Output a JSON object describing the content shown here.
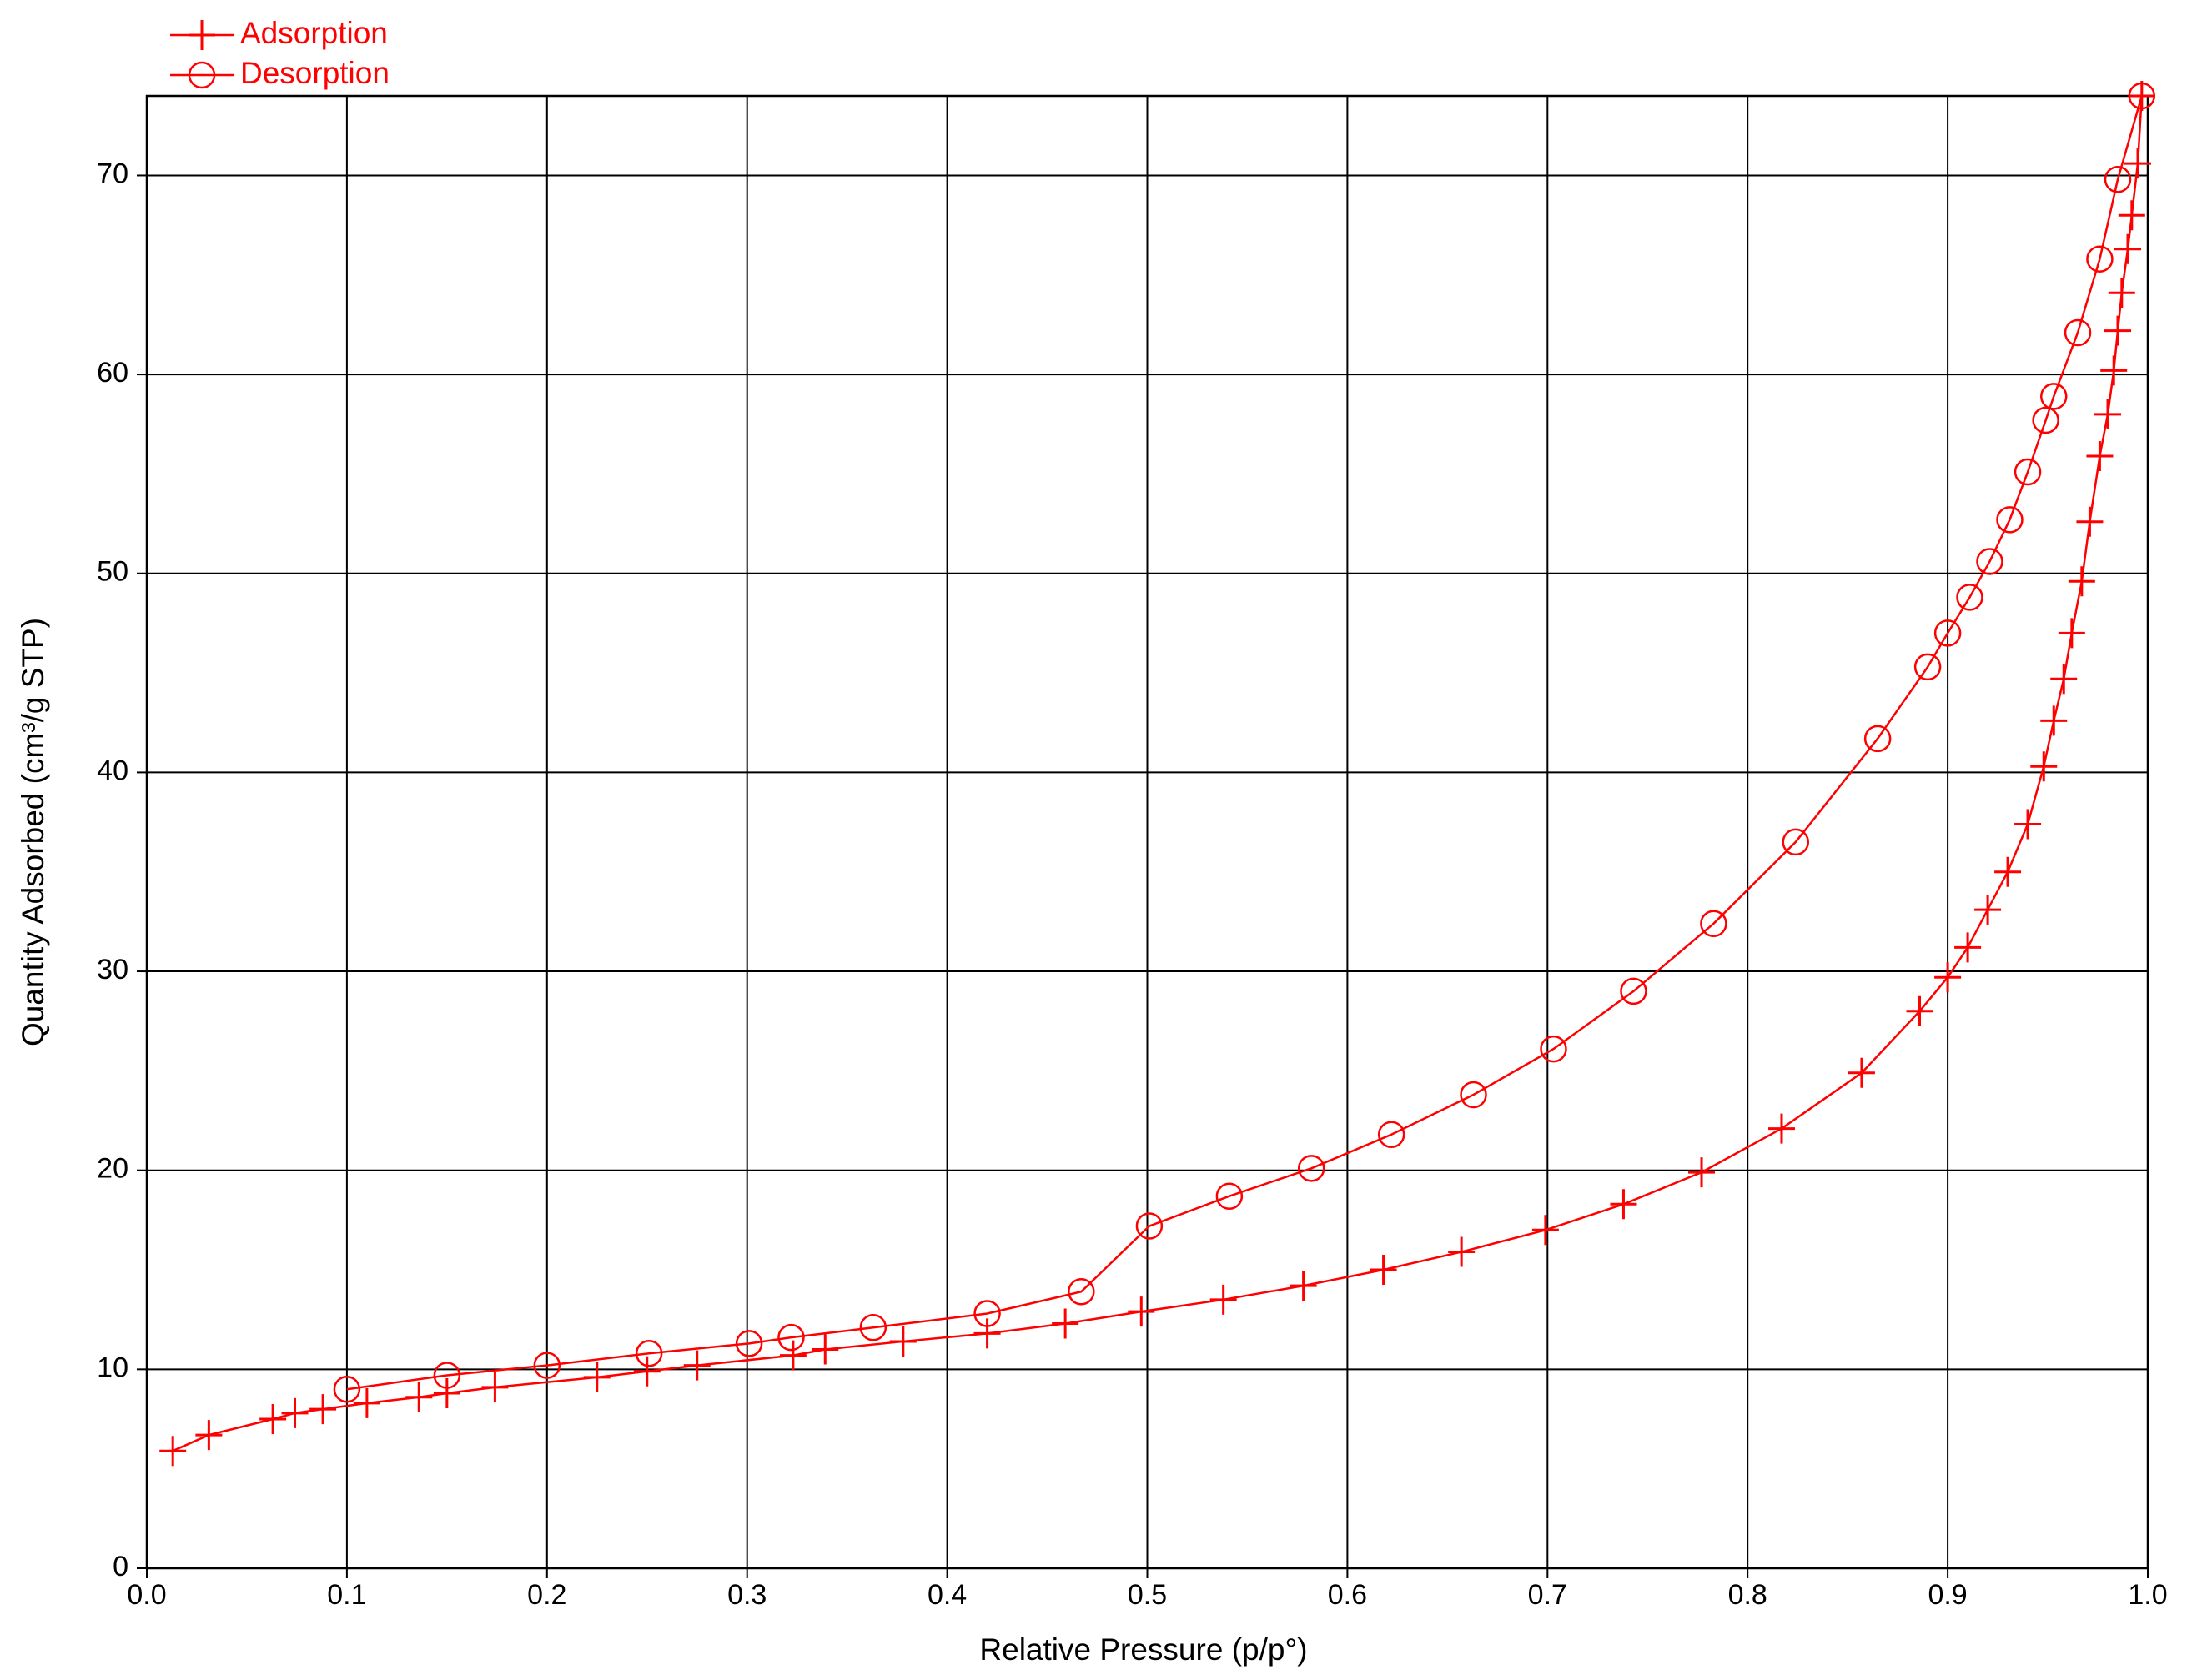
{
  "chart_data": {
    "type": "line",
    "xlabel": "Relative Pressure (p/p°)",
    "ylabel": "Quantity Adsorbed (cm³/g STP)",
    "xlim": [
      0,
      1
    ],
    "ylim": [
      0,
      74
    ],
    "xticks": [
      {
        "value": 0,
        "label": "0.0"
      },
      0.1,
      0.2,
      0.3,
      0.4,
      0.5,
      0.6,
      0.7,
      0.8,
      0.9,
      {
        "value": 1,
        "label": "1.0"
      }
    ],
    "yticks": [
      0,
      10,
      20,
      30,
      40,
      50,
      60,
      70
    ],
    "grid": true,
    "legend": "top-left",
    "series": [
      {
        "name": "Adsorption",
        "color": "#ff0000",
        "marker": "plus",
        "x": [
          0.013,
          0.031,
          0.063,
          0.074,
          0.088,
          0.11,
          0.136,
          0.15,
          0.174,
          0.225,
          0.25,
          0.275,
          0.323,
          0.339,
          0.378,
          0.42,
          0.459,
          0.497,
          0.538,
          0.578,
          0.618,
          0.657,
          0.699,
          0.738,
          0.777,
          0.817,
          0.857,
          0.886,
          0.9,
          0.91,
          0.92,
          0.93,
          0.94,
          0.948,
          0.953,
          0.958,
          0.962,
          0.967,
          0.971,
          0.976,
          0.98,
          0.983,
          0.985,
          0.987,
          0.99,
          0.992,
          0.995,
          0.997
        ],
        "values": [
          5.9,
          6.7,
          7.5,
          7.8,
          8.0,
          8.3,
          8.6,
          8.8,
          9.1,
          9.6,
          9.9,
          10.2,
          10.7,
          11.0,
          11.4,
          11.8,
          12.3,
          12.9,
          13.5,
          14.2,
          15.0,
          15.9,
          17.0,
          18.3,
          19.9,
          22.1,
          24.9,
          28.0,
          29.7,
          31.2,
          33.1,
          35.0,
          37.4,
          40.3,
          42.6,
          44.7,
          47.0,
          49.6,
          52.6,
          55.9,
          58.0,
          60.2,
          62.2,
          64.1,
          66.3,
          68.0,
          70.6,
          74.0
        ]
      },
      {
        "name": "Desorption",
        "color": "#ff0000",
        "marker": "circle",
        "x": [
          0.997,
          0.985,
          0.976,
          0.965,
          0.953,
          0.949,
          0.94,
          0.931,
          0.921,
          0.911,
          0.9,
          0.89,
          0.865,
          0.824,
          0.783,
          0.743,
          0.703,
          0.663,
          0.622,
          0.582,
          0.541,
          0.501,
          0.467,
          0.42,
          0.363,
          0.322,
          0.301,
          0.251,
          0.2,
          0.15,
          0.1
        ],
        "values": [
          74.0,
          69.8,
          65.8,
          62.1,
          58.9,
          57.7,
          55.1,
          52.7,
          50.6,
          48.8,
          47.0,
          45.3,
          41.7,
          36.5,
          32.4,
          29.0,
          26.1,
          23.8,
          21.8,
          20.1,
          18.7,
          17.2,
          13.9,
          12.8,
          12.1,
          11.6,
          11.3,
          10.8,
          10.2,
          9.7,
          9.0
        ]
      }
    ]
  }
}
